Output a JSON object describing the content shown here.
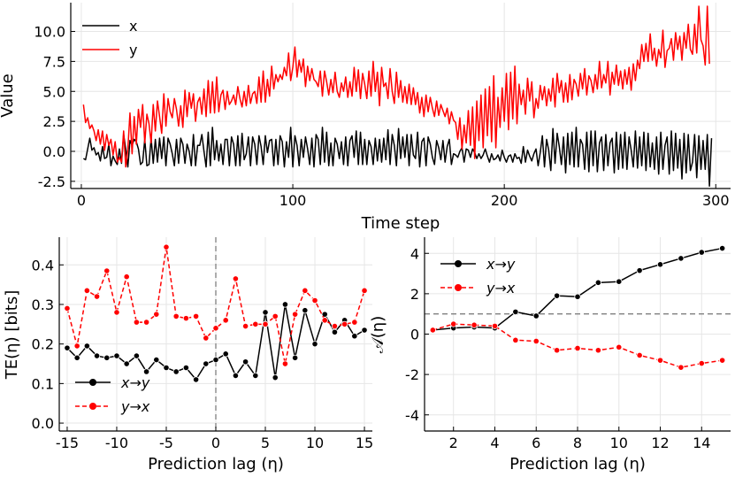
{
  "chart_data": [
    {
      "type": "line",
      "title": "",
      "xlabel": "Time step",
      "ylabel": "Value",
      "xlim": [
        -5,
        307
      ],
      "ylim": [
        -3.1,
        12.4
      ],
      "xticks": [
        0,
        100,
        200,
        300
      ],
      "yticks": [
        -2.5,
        0.0,
        2.5,
        5.0,
        7.5,
        10.0
      ],
      "ytick_labels": [
        "-2.5",
        "0.0",
        "2.5",
        "5.0",
        "7.5",
        "10.0"
      ],
      "grid": true,
      "legend_position": "top-left",
      "series": [
        {
          "name": "x",
          "color": "#000000",
          "x_start": 1,
          "x_step": 1,
          "values": [
            -0.6,
            -0.7,
            0.2,
            1.1,
            0.1,
            0.3,
            -0.3,
            -0.1,
            -0.8,
            0.4,
            -0.6,
            -0.5,
            0.6,
            -1.2,
            -0.4,
            -0.8,
            -1.1,
            0.2,
            -1.0,
            1.4,
            0.2,
            -1.3,
            0.9,
            0.5,
            1.0,
            0.8,
            0.2,
            -1.1,
            -0.9,
            1.0,
            -1.2,
            -1.1,
            1.1,
            -1.0,
            1.0,
            -0.9,
            1.1,
            -0.6,
            1.2,
            -1.2,
            1.1,
            0.6,
            -0.2,
            -1.2,
            1.0,
            -1.0,
            1.1,
            0.6,
            -1.0,
            0.6,
            0.0,
            -1.2,
            1.4,
            -1.2,
            0.5,
            0.5,
            1.4,
            0.0,
            -1.3,
            1.6,
            -1.2,
            2.0,
            -0.7,
            0.9,
            -0.8,
            0.6,
            -1.1,
            1.0,
            1.0,
            -1.2,
            1.2,
            0.6,
            -1.2,
            1.3,
            -1.2,
            1.5,
            -0.7,
            -0.2,
            1.2,
            -1.2,
            1.2,
            0.6,
            -1.1,
            1.3,
            0.4,
            -1.1,
            1.3,
            -0.1,
            0.9,
            1.0,
            -1.2,
            1.0,
            -1.1,
            1.3,
            0.8,
            -1.3,
            0.8,
            -0.5,
            2.0,
            -1.3,
            1.3,
            0.5,
            -1.2,
            1.0,
            -0.5,
            1.2,
            0.2,
            -1.1,
            1.1,
            -1.3,
            1.4,
            1.0,
            -1.1,
            2.0,
            -0.9,
            1.6,
            -1.2,
            0.7,
            -1.2,
            1.1,
            0.6,
            -0.6,
            0.8,
            -1.1,
            1.2,
            -1.2,
            0.9,
            1.3,
            -0.5,
            1.7,
            -1.1,
            1.6,
            -1.1,
            1.0,
            -1.1,
            0.9,
            0.4,
            -1.1,
            1.1,
            -0.8,
            1.0,
            -0.9,
            1.1,
            -0.7,
            1.8,
            -1.1,
            1.4,
            0.5,
            -1.2,
            1.9,
            -0.6,
            1.2,
            -0.5,
            1.4,
            -1.2,
            1.4,
            -0.3,
            -0.6,
            1.6,
            -1.3,
            0.8,
            1.1,
            -1.2,
            1.2,
            0.6,
            -0.5,
            -1.1,
            0.9,
            0.3,
            -0.7,
            0.9,
            -0.9,
            0.4,
            1.0,
            -1.1,
            -0.2,
            -0.3,
            -0.5,
            0.0,
            0.3,
            -0.9,
            0.2,
            0.1,
            -0.5,
            0.2,
            -0.1,
            -0.6,
            -0.2,
            -0.6,
            -0.3,
            0.2,
            -0.4,
            -0.9,
            -0.2,
            -0.7,
            -0.6,
            -0.3,
            -0.8,
            0.1,
            -0.5,
            -0.9,
            -0.4,
            -0.3,
            -0.9,
            -0.2,
            -0.6,
            -0.5,
            -1.0,
            0.4,
            -0.9,
            0.1,
            -0.4,
            -0.8,
            -0.2,
            0.2,
            -1.2,
            -0.1,
            1.3,
            -1.3,
            1.0,
            0.1,
            -1.6,
            1.9,
            -1.0,
            1.5,
            0.4,
            -1.1,
            1.2,
            -1.8,
            1.5,
            -1.1,
            1.6,
            -1.3,
            2.0,
            -1.3,
            1.0,
            0.6,
            -1.5,
            1.6,
            -1.7,
            1.7,
            -1.2,
            1.7,
            -1.7,
            0.7,
            1.2,
            -1.6,
            1.4,
            -1.2,
            0.7,
            1.1,
            -1.8,
            1.6,
            -1.5,
            1.4,
            -1.4,
            1.6,
            -1.5,
            1.2,
            0.1,
            -1.3,
            1.7,
            -1.4,
            1.2,
            -1.2,
            1.6,
            -1.6,
            1.5,
            -1.3,
            0.7,
            -1.5,
            1.2,
            -1.9,
            1.6,
            -1.5,
            0.5,
            1.2,
            -1.9,
            1.7,
            -1.6,
            1.5,
            -1.4,
            1.0,
            -2.3,
            1.5,
            -1.8,
            1.4,
            -1.6,
            -0.9,
            1.4,
            -2.2,
            1.3,
            -1.5,
            0.9,
            -1.5,
            1.4,
            -2.9,
            1.1
          ]
        },
        {
          "name": "y",
          "color": "#ff0000",
          "x_start": 1,
          "x_step": 1,
          "values": [
            3.9,
            2.4,
            2.8,
            1.9,
            2.2,
            1.7,
            0.9,
            1.8,
            0.6,
            1.7,
            0.1,
            1.4,
            0.5,
            1.0,
            -0.3,
            0.8,
            -0.9,
            -0.5,
            -0.9,
            1.7,
            -1.3,
            0.2,
            3.2,
            -0.2,
            2.9,
            0.6,
            3.5,
            2.0,
            3.9,
            0.7,
            3.1,
            2.3,
            0.7,
            3.9,
            1.7,
            4.2,
            2.9,
            1.5,
            4.8,
            2.1,
            4.4,
            3.3,
            2.8,
            4.4,
            3.5,
            2.1,
            3.8,
            2.0,
            5.1,
            2.9,
            4.9,
            3.6,
            4.8,
            2.5,
            4.1,
            4.5,
            3.1,
            5.2,
            2.9,
            5.9,
            3.2,
            5.8,
            3.2,
            6.2,
            3.3,
            4.7,
            5.1,
            3.5,
            5.0,
            3.9,
            4.2,
            4.7,
            3.9,
            5.4,
            4.4,
            3.7,
            5.0,
            3.8,
            5.5,
            4.0,
            4.8,
            5.0,
            4.0,
            6.2,
            4.1,
            6.7,
            4.1,
            6.0,
            4.6,
            7.1,
            5.2,
            6.4,
            5.8,
            6.4,
            6.0,
            7.0,
            6.3,
            8.2,
            5.9,
            7.0,
            8.7,
            6.2,
            7.6,
            6.6,
            7.7,
            5.4,
            7.1,
            5.9,
            6.9,
            6.0,
            5.8,
            5.4,
            6.7,
            4.6,
            6.7,
            5.8,
            4.7,
            6.0,
            4.9,
            6.6,
            5.0,
            4.5,
            5.7,
            5.0,
            6.2,
            4.5,
            5.8,
            4.6,
            7.0,
            5.0,
            6.8,
            4.4,
            6.5,
            5.6,
            4.4,
            6.7,
            4.6,
            7.5,
            5.0,
            6.6,
            3.8,
            7.0,
            5.4,
            5.7,
            4.4,
            6.9,
            5.0,
            4.0,
            6.6,
            4.5,
            5.9,
            4.1,
            5.4,
            4.0,
            5.6,
            3.9,
            5.3,
            3.9,
            4.9,
            3.2,
            4.5,
            2.9,
            4.7,
            3.3,
            4.5,
            3.6,
            2.9,
            4.2,
            3.0,
            3.9,
            3.4,
            2.9,
            3.6,
            2.3,
            3.3,
            2.6,
            2.4,
            1.0,
            2.8,
            0.2,
            2.2,
            0.7,
            3.4,
            0.5,
            3.7,
            -0.6,
            4.2,
            0.9,
            4.7,
            0.3,
            5.2,
            1.3,
            5.4,
            0.8,
            6.3,
            0.3,
            4.5,
            2.0,
            5.3,
            2.5,
            6.5,
            1.8,
            6.6,
            2.7,
            7.1,
            2.3,
            5.6,
            3.9,
            5.1,
            3.1,
            6.1,
            4.2,
            5.8,
            2.8,
            4.4,
            3.6,
            5.5,
            4.3,
            5.4,
            3.8,
            5.2,
            4.2,
            6.1,
            3.7,
            6.5,
            4.9,
            5.9,
            4.1,
            5.7,
            4.1,
            6.4,
            4.3,
            6.0,
            5.6,
            4.6,
            6.5,
            5.2,
            6.9,
            4.7,
            6.3,
            5.9,
            4.9,
            6.4,
            5.2,
            7.5,
            5.3,
            6.4,
            5.7,
            7.5,
            4.7,
            6.6,
            5.6,
            7.2,
            5.5,
            6.7,
            5.2,
            6.8,
            5.6,
            7.0,
            5.1,
            7.3,
            5.9,
            7.6,
            6.9,
            8.9,
            7.5,
            9.0,
            7.5,
            9.8,
            7.6,
            8.6,
            7.1,
            8.5,
            7.8,
            10.1,
            7.0,
            8.4,
            8.6,
            9.4,
            7.6,
            9.9,
            8.5,
            9.6,
            7.6,
            9.9,
            8.6,
            10.6,
            8.5,
            8.1,
            10.6,
            8.2,
            12.1,
            9.3,
            8.8,
            7.2,
            12.1,
            7.3
          ]
        }
      ]
    },
    {
      "type": "line",
      "title": "",
      "xlabel": "Prediction lag (η)",
      "ylabel": "TE(η) [bits]",
      "xlim": [
        -15.8,
        15.8
      ],
      "ylim": [
        -0.02,
        0.47
      ],
      "xticks": [
        -15,
        -10,
        -5,
        0,
        5,
        10,
        15
      ],
      "yticks": [
        0.0,
        0.1,
        0.2,
        0.3,
        0.4
      ],
      "ytick_labels": [
        "0.0",
        "0.1",
        "0.2",
        "0.3",
        "0.4"
      ],
      "vline": 0,
      "grid": true,
      "legend_position": "bottom-left",
      "series": [
        {
          "name": "x→y",
          "color": "#000000",
          "style": "solid",
          "marker": "circle",
          "x": [
            -15,
            -14,
            -13,
            -12,
            -11,
            -10,
            -9,
            -8,
            -7,
            -6,
            -5,
            -4,
            -3,
            -2,
            -1,
            0,
            1,
            2,
            3,
            4,
            5,
            6,
            7,
            8,
            9,
            10,
            11,
            12,
            13,
            14,
            15
          ],
          "values": [
            0.19,
            0.165,
            0.195,
            0.17,
            0.165,
            0.17,
            0.15,
            0.17,
            0.13,
            0.16,
            0.14,
            0.13,
            0.14,
            0.11,
            0.15,
            0.16,
            0.175,
            0.12,
            0.155,
            0.12,
            0.28,
            0.115,
            0.3,
            0.165,
            0.285,
            0.2,
            0.275,
            0.23,
            0.26,
            0.22,
            0.235
          ]
        },
        {
          "name": "y→x",
          "color": "#ff0000",
          "style": "dashed",
          "marker": "circle",
          "x": [
            -15,
            -14,
            -13,
            -12,
            -11,
            -10,
            -9,
            -8,
            -7,
            -6,
            -5,
            -4,
            -3,
            -2,
            -1,
            0,
            1,
            2,
            3,
            4,
            5,
            6,
            7,
            8,
            9,
            10,
            11,
            12,
            13,
            14,
            15
          ],
          "values": [
            0.29,
            0.195,
            0.335,
            0.32,
            0.385,
            0.28,
            0.37,
            0.255,
            0.255,
            0.275,
            0.445,
            0.27,
            0.265,
            0.27,
            0.215,
            0.24,
            0.26,
            0.365,
            0.245,
            0.25,
            0.25,
            0.27,
            0.15,
            0.275,
            0.335,
            0.31,
            0.26,
            0.245,
            0.25,
            0.255,
            0.335
          ]
        }
      ]
    },
    {
      "type": "line",
      "title": "",
      "xlabel": "Prediction lag (η)",
      "ylabel": "𝒜(η)",
      "xlim": [
        0.6,
        15.4
      ],
      "ylim": [
        -4.8,
        4.8
      ],
      "xticks": [
        2,
        4,
        6,
        8,
        10,
        12,
        14
      ],
      "yticks": [
        -4,
        -2,
        0,
        2,
        4
      ],
      "ytick_labels": [
        "-4",
        "-2",
        "0",
        "2",
        "4"
      ],
      "hline": 1,
      "grid": true,
      "legend_position": "top-left",
      "series": [
        {
          "name": "x→y",
          "color": "#000000",
          "style": "solid",
          "marker": "circle",
          "x": [
            1,
            2,
            3,
            4,
            5,
            6,
            7,
            8,
            9,
            10,
            11,
            12,
            13,
            14,
            15
          ],
          "values": [
            0.2,
            0.3,
            0.35,
            0.3,
            1.1,
            0.9,
            1.9,
            1.85,
            2.55,
            2.6,
            3.15,
            3.45,
            3.75,
            4.05,
            4.25
          ]
        },
        {
          "name": "y→x",
          "color": "#ff0000",
          "style": "dashed",
          "marker": "circle",
          "x": [
            1,
            2,
            3,
            4,
            5,
            6,
            7,
            8,
            9,
            10,
            11,
            12,
            13,
            14,
            15
          ],
          "values": [
            0.2,
            0.5,
            0.45,
            0.4,
            -0.3,
            -0.35,
            -0.8,
            -0.7,
            -0.8,
            -0.65,
            -1.05,
            -1.3,
            -1.65,
            -1.45,
            -1.3
          ]
        }
      ]
    }
  ]
}
